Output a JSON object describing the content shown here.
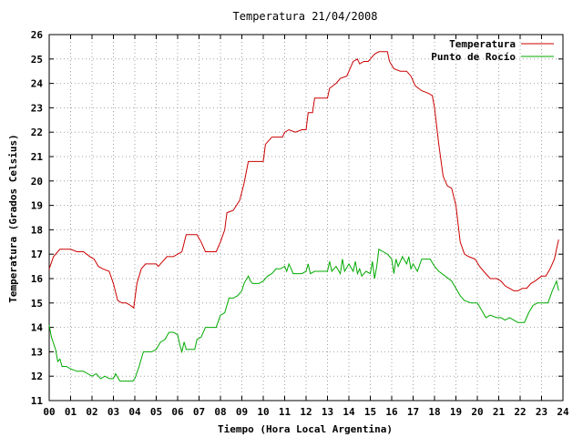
{
  "chart_data": {
    "type": "line",
    "title": "Temperatura 21/04/2008",
    "xlabel": "Tiempo (Hora Local Argentina)",
    "ylabel": "Temperatura (Grados Celsius)",
    "xlim": [
      0,
      24
    ],
    "ylim": [
      11,
      26
    ],
    "x_ticks": [
      "00",
      "01",
      "02",
      "03",
      "04",
      "05",
      "06",
      "07",
      "08",
      "09",
      "10",
      "11",
      "12",
      "13",
      "14",
      "15",
      "16",
      "17",
      "18",
      "19",
      "20",
      "21",
      "22",
      "23",
      "24"
    ],
    "y_ticks": [
      11,
      12,
      13,
      14,
      15,
      16,
      17,
      18,
      19,
      20,
      21,
      22,
      23,
      24,
      25,
      26
    ],
    "grid": true,
    "legend_position": "top-right",
    "series": [
      {
        "name": "Temperatura",
        "color": "#cc0000",
        "points": [
          [
            0.0,
            16.4
          ],
          [
            0.2,
            16.9
          ],
          [
            0.5,
            17.2
          ],
          [
            1.0,
            17.2
          ],
          [
            1.3,
            17.1
          ],
          [
            1.6,
            17.1
          ],
          [
            1.9,
            16.9
          ],
          [
            2.1,
            16.8
          ],
          [
            2.3,
            16.5
          ],
          [
            2.5,
            16.4
          ],
          [
            2.8,
            16.3
          ],
          [
            3.0,
            15.8
          ],
          [
            3.2,
            15.1
          ],
          [
            3.4,
            15.0
          ],
          [
            3.6,
            15.0
          ],
          [
            3.8,
            14.9
          ],
          [
            3.95,
            14.8
          ],
          [
            4.1,
            15.8
          ],
          [
            4.3,
            16.4
          ],
          [
            4.5,
            16.6
          ],
          [
            4.8,
            16.6
          ],
          [
            5.0,
            16.6
          ],
          [
            5.1,
            16.5
          ],
          [
            5.3,
            16.7
          ],
          [
            5.5,
            16.9
          ],
          [
            5.8,
            16.9
          ],
          [
            6.0,
            17.0
          ],
          [
            6.2,
            17.1
          ],
          [
            6.4,
            17.8
          ],
          [
            6.6,
            17.8
          ],
          [
            6.9,
            17.8
          ],
          [
            7.1,
            17.5
          ],
          [
            7.3,
            17.1
          ],
          [
            7.5,
            17.1
          ],
          [
            7.8,
            17.1
          ],
          [
            8.0,
            17.5
          ],
          [
            8.2,
            18.0
          ],
          [
            8.3,
            18.7
          ],
          [
            8.6,
            18.8
          ],
          [
            8.9,
            19.2
          ],
          [
            9.1,
            19.9
          ],
          [
            9.3,
            20.8
          ],
          [
            9.6,
            20.8
          ],
          [
            9.8,
            20.8
          ],
          [
            10.0,
            20.8
          ],
          [
            10.1,
            21.5
          ],
          [
            10.4,
            21.8
          ],
          [
            10.7,
            21.8
          ],
          [
            10.9,
            21.8
          ],
          [
            11.0,
            22.0
          ],
          [
            11.2,
            22.1
          ],
          [
            11.5,
            22.0
          ],
          [
            11.8,
            22.1
          ],
          [
            12.0,
            22.1
          ],
          [
            12.1,
            22.8
          ],
          [
            12.3,
            22.8
          ],
          [
            12.4,
            23.4
          ],
          [
            12.7,
            23.4
          ],
          [
            13.0,
            23.4
          ],
          [
            13.1,
            23.8
          ],
          [
            13.4,
            24.0
          ],
          [
            13.6,
            24.2
          ],
          [
            13.9,
            24.3
          ],
          [
            14.1,
            24.7
          ],
          [
            14.2,
            24.9
          ],
          [
            14.4,
            25.0
          ],
          [
            14.5,
            24.8
          ],
          [
            14.7,
            24.9
          ],
          [
            14.9,
            24.9
          ],
          [
            15.0,
            25.0
          ],
          [
            15.2,
            25.2
          ],
          [
            15.4,
            25.3
          ],
          [
            15.6,
            25.3
          ],
          [
            15.8,
            25.3
          ],
          [
            15.9,
            24.9
          ],
          [
            16.1,
            24.6
          ],
          [
            16.4,
            24.5
          ],
          [
            16.7,
            24.5
          ],
          [
            16.9,
            24.3
          ],
          [
            17.1,
            23.9
          ],
          [
            17.4,
            23.7
          ],
          [
            17.7,
            23.6
          ],
          [
            17.9,
            23.5
          ],
          [
            18.0,
            23.0
          ],
          [
            18.2,
            21.5
          ],
          [
            18.4,
            20.2
          ],
          [
            18.6,
            19.8
          ],
          [
            18.8,
            19.7
          ],
          [
            19.0,
            19.0
          ],
          [
            19.2,
            17.5
          ],
          [
            19.4,
            17.0
          ],
          [
            19.6,
            16.9
          ],
          [
            19.9,
            16.8
          ],
          [
            20.1,
            16.5
          ],
          [
            20.3,
            16.3
          ],
          [
            20.6,
            16.0
          ],
          [
            20.9,
            16.0
          ],
          [
            21.1,
            15.9
          ],
          [
            21.3,
            15.7
          ],
          [
            21.5,
            15.6
          ],
          [
            21.7,
            15.5
          ],
          [
            21.9,
            15.5
          ],
          [
            22.1,
            15.6
          ],
          [
            22.3,
            15.6
          ],
          [
            22.5,
            15.8
          ],
          [
            22.7,
            15.9
          ],
          [
            23.0,
            16.1
          ],
          [
            23.2,
            16.1
          ],
          [
            23.4,
            16.4
          ],
          [
            23.6,
            16.8
          ],
          [
            23.7,
            17.2
          ],
          [
            23.8,
            17.6
          ]
        ]
      },
      {
        "name": "Punto de Rocío",
        "color": "#00aa00",
        "points": [
          [
            0.0,
            14.1
          ],
          [
            0.1,
            13.6
          ],
          [
            0.3,
            13.1
          ],
          [
            0.4,
            12.6
          ],
          [
            0.5,
            12.7
          ],
          [
            0.6,
            12.4
          ],
          [
            0.8,
            12.4
          ],
          [
            1.0,
            12.3
          ],
          [
            1.3,
            12.2
          ],
          [
            1.6,
            12.2
          ],
          [
            1.8,
            12.1
          ],
          [
            2.0,
            12.0
          ],
          [
            2.2,
            12.1
          ],
          [
            2.4,
            11.9
          ],
          [
            2.6,
            12.0
          ],
          [
            2.8,
            11.9
          ],
          [
            3.0,
            11.9
          ],
          [
            3.1,
            12.1
          ],
          [
            3.3,
            11.8
          ],
          [
            3.5,
            11.8
          ],
          [
            3.7,
            11.8
          ],
          [
            3.9,
            11.8
          ],
          [
            4.0,
            11.9
          ],
          [
            4.2,
            12.4
          ],
          [
            4.4,
            13.0
          ],
          [
            4.6,
            13.0
          ],
          [
            4.8,
            13.0
          ],
          [
            5.0,
            13.1
          ],
          [
            5.2,
            13.4
          ],
          [
            5.4,
            13.5
          ],
          [
            5.6,
            13.8
          ],
          [
            5.8,
            13.8
          ],
          [
            6.0,
            13.7
          ],
          [
            6.1,
            13.3
          ],
          [
            6.2,
            13.0
          ],
          [
            6.3,
            13.4
          ],
          [
            6.4,
            13.1
          ],
          [
            6.6,
            13.1
          ],
          [
            6.8,
            13.1
          ],
          [
            6.9,
            13.5
          ],
          [
            7.1,
            13.6
          ],
          [
            7.3,
            14.0
          ],
          [
            7.6,
            14.0
          ],
          [
            7.8,
            14.0
          ],
          [
            8.0,
            14.5
          ],
          [
            8.2,
            14.6
          ],
          [
            8.4,
            15.2
          ],
          [
            8.6,
            15.2
          ],
          [
            8.8,
            15.3
          ],
          [
            9.0,
            15.5
          ],
          [
            9.1,
            15.8
          ],
          [
            9.3,
            16.1
          ],
          [
            9.4,
            15.9
          ],
          [
            9.5,
            15.8
          ],
          [
            9.8,
            15.8
          ],
          [
            10.0,
            15.9
          ],
          [
            10.2,
            16.1
          ],
          [
            10.4,
            16.2
          ],
          [
            10.6,
            16.4
          ],
          [
            10.8,
            16.4
          ],
          [
            11.0,
            16.5
          ],
          [
            11.1,
            16.3
          ],
          [
            11.2,
            16.6
          ],
          [
            11.4,
            16.2
          ],
          [
            11.6,
            16.2
          ],
          [
            11.8,
            16.2
          ],
          [
            12.0,
            16.3
          ],
          [
            12.1,
            16.6
          ],
          [
            12.2,
            16.2
          ],
          [
            12.4,
            16.3
          ],
          [
            12.6,
            16.3
          ],
          [
            12.8,
            16.3
          ],
          [
            13.0,
            16.3
          ],
          [
            13.1,
            16.7
          ],
          [
            13.2,
            16.3
          ],
          [
            13.4,
            16.5
          ],
          [
            13.6,
            16.2
          ],
          [
            13.7,
            16.8
          ],
          [
            13.8,
            16.3
          ],
          [
            14.0,
            16.6
          ],
          [
            14.2,
            16.3
          ],
          [
            14.3,
            16.7
          ],
          [
            14.4,
            16.2
          ],
          [
            14.5,
            16.4
          ],
          [
            14.6,
            16.1
          ],
          [
            14.8,
            16.3
          ],
          [
            15.0,
            16.2
          ],
          [
            15.1,
            16.7
          ],
          [
            15.2,
            16.0
          ],
          [
            15.3,
            16.5
          ],
          [
            15.4,
            17.2
          ],
          [
            15.6,
            17.1
          ],
          [
            15.8,
            17.0
          ],
          [
            16.0,
            16.8
          ],
          [
            16.1,
            16.2
          ],
          [
            16.2,
            16.8
          ],
          [
            16.3,
            16.5
          ],
          [
            16.5,
            16.9
          ],
          [
            16.7,
            16.6
          ],
          [
            16.8,
            16.9
          ],
          [
            16.9,
            16.4
          ],
          [
            17.0,
            16.6
          ],
          [
            17.2,
            16.3
          ],
          [
            17.4,
            16.8
          ],
          [
            17.6,
            16.8
          ],
          [
            17.8,
            16.8
          ],
          [
            18.0,
            16.5
          ],
          [
            18.2,
            16.3
          ],
          [
            18.5,
            16.1
          ],
          [
            18.8,
            15.9
          ],
          [
            19.0,
            15.6
          ],
          [
            19.2,
            15.3
          ],
          [
            19.4,
            15.1
          ],
          [
            19.7,
            15.0
          ],
          [
            20.0,
            15.0
          ],
          [
            20.2,
            14.7
          ],
          [
            20.4,
            14.4
          ],
          [
            20.6,
            14.5
          ],
          [
            20.9,
            14.4
          ],
          [
            21.1,
            14.4
          ],
          [
            21.3,
            14.3
          ],
          [
            21.5,
            14.4
          ],
          [
            21.7,
            14.3
          ],
          [
            21.9,
            14.2
          ],
          [
            22.2,
            14.2
          ],
          [
            22.4,
            14.6
          ],
          [
            22.6,
            14.9
          ],
          [
            22.8,
            15.0
          ],
          [
            23.1,
            15.0
          ],
          [
            23.3,
            15.0
          ],
          [
            23.5,
            15.5
          ],
          [
            23.7,
            15.9
          ],
          [
            23.8,
            15.5
          ]
        ]
      }
    ]
  }
}
